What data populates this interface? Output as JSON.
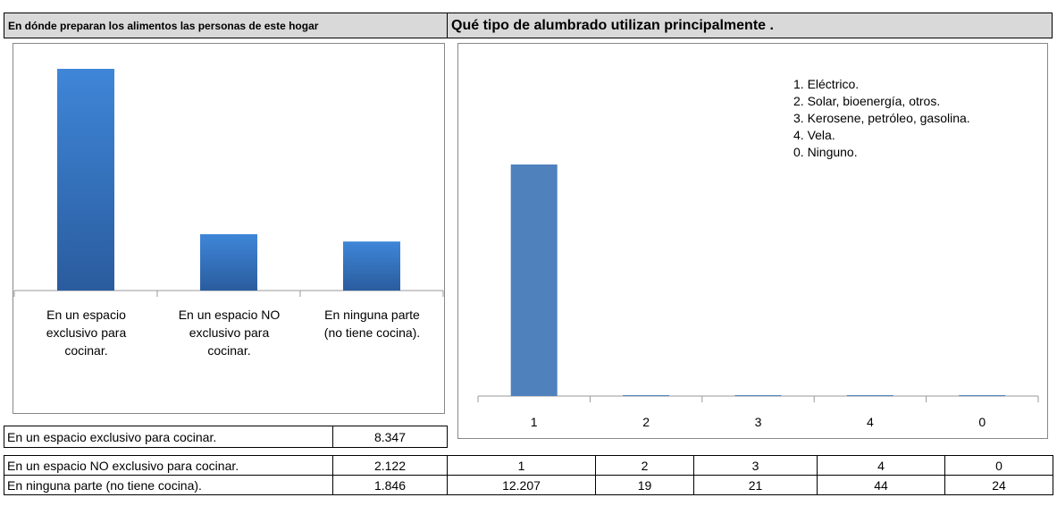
{
  "header": {
    "left": "En dónde preparan los alimentos las personas de este hogar",
    "right": "Qué tipo de alumbrado utilizan principalmente ."
  },
  "chart_data": [
    {
      "type": "bar",
      "categories": [
        "En un espacio exclusivo para cocinar.",
        "En un espacio NO exclusivo para cocinar.",
        "En ninguna parte (no tiene cocina)."
      ],
      "values": [
        8347,
        2122,
        1846
      ],
      "value_labels": [
        "8.347",
        "2.122",
        "1.846"
      ],
      "color": "#3a7dcf"
    },
    {
      "type": "bar",
      "categories": [
        "1",
        "2",
        "3",
        "4",
        "0"
      ],
      "values": [
        12207,
        19,
        21,
        44,
        24
      ],
      "value_labels": [
        "12.207",
        "19",
        "21",
        "44",
        "24"
      ],
      "annotations": [
        "1. Eléctrico.",
        "2. Solar, bioenergía, otros.",
        "3. Kerosene, petróleo, gasolina.",
        "4. Vela.",
        "0. Ninguno."
      ],
      "color": "#4f81bd"
    }
  ]
}
